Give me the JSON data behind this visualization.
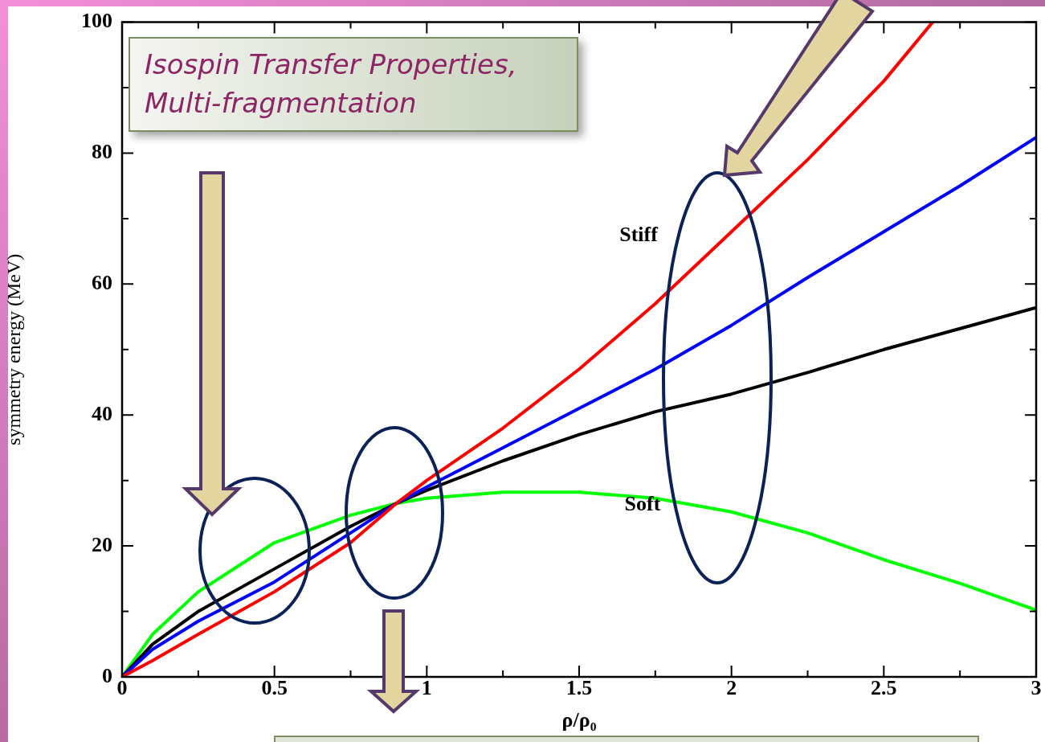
{
  "chart_data": {
    "type": "line",
    "xlabel": "ρ/ρ₀",
    "ylabel": "symmetry energy (MeV)",
    "xlim": [
      0,
      3
    ],
    "ylim": [
      0,
      100
    ],
    "xticks": [
      0,
      {
        "value": 0.25,
        "label": null
      },
      0.5,
      {
        "value": 0.75,
        "label": null
      },
      1,
      {
        "value": 1.25,
        "label": null
      },
      1.5,
      {
        "value": 1.75,
        "label": null
      },
      2,
      {
        "value": 2.25,
        "label": null
      },
      2.5,
      {
        "value": 2.75,
        "label": null
      },
      3
    ],
    "yticks": [
      0,
      {
        "value": 10,
        "label": null
      },
      20,
      {
        "value": 30,
        "label": null
      },
      40,
      {
        "value": 50,
        "label": null
      },
      60,
      {
        "value": 70,
        "label": null
      },
      80,
      {
        "value": 90,
        "label": null
      },
      100
    ],
    "grid": false,
    "legend": false,
    "marker": "none",
    "line_style": "solid",
    "x": [
      0,
      0.1,
      0.25,
      0.5,
      0.75,
      0.9,
      1,
      1.25,
      1.5,
      1.75,
      2,
      2.25,
      2.5,
      2.75,
      3
    ],
    "series": [
      {
        "color": "#ff0000",
        "x": [
          0,
          0.1,
          0.25,
          0.5,
          0.75,
          0.9,
          1,
          1.25,
          1.5,
          1.75,
          2,
          2.25,
          2.5,
          2.66
        ],
        "values": [
          0,
          2.5,
          6.5,
          13,
          20.5,
          26.5,
          30,
          38,
          47,
          57,
          68,
          79,
          91,
          100
        ]
      },
      {
        "color": "#0000ff",
        "values": [
          0,
          4.2,
          8.5,
          14.5,
          22,
          26.5,
          29,
          35,
          41,
          47,
          53.7,
          61,
          68,
          75,
          82.4
        ]
      },
      {
        "color": "#000000",
        "values": [
          0,
          5,
          10,
          16.5,
          23,
          26.5,
          28.5,
          33,
          37,
          40.5,
          43.2,
          46.5,
          50,
          53.2,
          56.4
        ]
      },
      {
        "color": "#00ff00",
        "values": [
          0,
          6.5,
          13,
          20.5,
          24.7,
          26.5,
          27.3,
          28.2,
          28.2,
          27.3,
          25.2,
          22,
          17.9,
          14.3,
          10.2
        ]
      }
    ],
    "annotations": [
      "Isospin Transfer Properties, Multi-fragmentation",
      "Stiff",
      "Soft"
    ]
  }
}
